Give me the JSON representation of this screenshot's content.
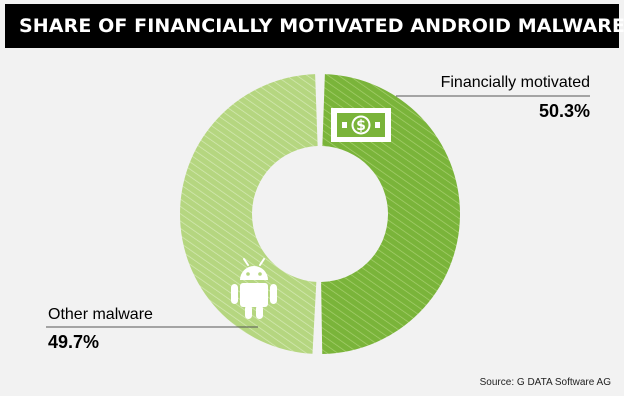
{
  "title": "SHARE OF FINANCIALLY MOTIVATED ANDROID MALWARE",
  "source": "Source: G DATA Software AG",
  "icons": {
    "financial": "dollar-banknote-icon",
    "other": "android-robot-icon"
  },
  "chart_data": {
    "type": "pie",
    "donut": true,
    "title": "SHARE OF FINANCIALLY MOTIVATED ANDROID MALWARE",
    "slices": [
      {
        "label": "Financially motivated",
        "value": 50.3,
        "value_label": "50.3%",
        "color": "#7ab43a"
      },
      {
        "label": "Other malware",
        "value": 49.7,
        "value_label": "49.7%",
        "color": "#b5d680"
      }
    ]
  }
}
